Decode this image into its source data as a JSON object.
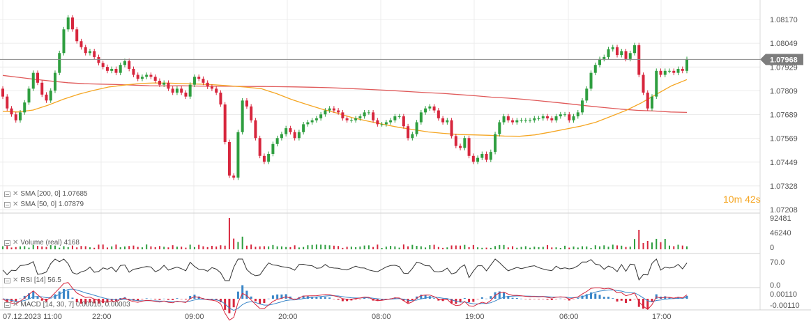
{
  "chart_data": {
    "type": "candlestick",
    "instrument_price_axis": {
      "ticks": [
        "1.08170",
        "1.08049",
        "1.07929",
        "1.07809",
        "1.07689",
        "1.07569",
        "1.07449",
        "1.07328",
        "1.07208"
      ],
      "min": 1.07208,
      "max": 1.0817,
      "current_price": "1.07968"
    },
    "x_axis": {
      "ticks": [
        "07.12.2023  11:00",
        "22:00",
        "09:00",
        "20:00",
        "08:00",
        "19:00",
        "06:00",
        "17:00"
      ]
    },
    "candles_close": [
      1.0778,
      1.0772,
      1.0769,
      1.0766,
      1.077,
      1.0775,
      1.0782,
      1.079,
      1.0785,
      1.0779,
      1.0776,
      1.0781,
      1.079,
      1.08,
      1.0812,
      1.0818,
      1.0812,
      1.0806,
      1.0803,
      1.08,
      1.0801,
      1.0798,
      1.0795,
      1.0793,
      1.0791,
      1.0792,
      1.079,
      1.0794,
      1.0796,
      1.0792,
      1.0789,
      1.0787,
      1.0788,
      1.0789,
      1.0788,
      1.0786,
      1.0784,
      1.0785,
      1.0782,
      1.078,
      1.0782,
      1.078,
      1.0778,
      1.0784,
      1.0788,
      1.0787,
      1.0785,
      1.0783,
      1.0782,
      1.078,
      1.0774,
      1.0755,
      1.0738,
      1.0737,
      1.076,
      1.0776,
      1.0773,
      1.0766,
      1.0757,
      1.0748,
      1.0745,
      1.0749,
      1.0754,
      1.0757,
      1.0759,
      1.0762,
      1.076,
      1.0757,
      1.076,
      1.0764,
      1.0765,
      1.0766,
      1.0767,
      1.0769,
      1.0771,
      1.0772,
      1.0771,
      1.077,
      1.0767,
      1.0766,
      1.0766,
      1.0767,
      1.0768,
      1.077,
      1.077,
      1.0766,
      1.0764,
      1.0764,
      1.0765,
      1.0766,
      1.0768,
      1.0768,
      1.0763,
      1.0757,
      1.0759,
      1.0765,
      1.077,
      1.0772,
      1.0773,
      1.0771,
      1.0767,
      1.0765,
      1.0766,
      1.0758,
      1.0753,
      1.0752,
      1.0757,
      1.0748,
      1.0745,
      1.0747,
      1.0749,
      1.0746,
      1.075,
      1.0759,
      1.0765,
      1.0768,
      1.0766,
      1.0765,
      1.0766,
      1.0766,
      1.0766,
      1.0766,
      1.0767,
      1.0767,
      1.0768,
      1.0767,
      1.0766,
      1.0768,
      1.0769,
      1.0769,
      1.0766,
      1.0768,
      1.077,
      1.0776,
      1.0782,
      1.079,
      1.0794,
      1.0797,
      1.0798,
      1.0802,
      1.0803,
      1.0799,
      1.0801,
      1.0797,
      1.08,
      1.0804,
      1.0789,
      1.078,
      1.0772,
      1.0778,
      1.0791,
      1.0789,
      1.0791,
      1.0791,
      1.079,
      1.0792,
      1.0791,
      1.0797
    ],
    "sma200": [
      1.07887,
      1.07877,
      1.07867,
      1.07858,
      1.0785,
      1.07845,
      1.07843,
      1.07841,
      1.07838,
      1.07835,
      1.07834,
      1.07835,
      1.07833,
      1.07832,
      1.07832,
      1.07831,
      1.07831,
      1.0783,
      1.07829,
      1.07827,
      1.07825,
      1.07822,
      1.07818,
      1.07814,
      1.0781,
      1.07805,
      1.078,
      1.07796,
      1.0779,
      1.07784,
      1.07777,
      1.07772,
      1.07766,
      1.07758,
      1.0775,
      1.07741,
      1.07732,
      1.07724,
      1.07716,
      1.0771,
      1.07707,
      1.07702,
      1.077
    ],
    "sma50": [
      1.07705,
      1.07702,
      1.07712,
      1.07737,
      1.07767,
      1.07792,
      1.07812,
      1.07829,
      1.07838,
      1.07846,
      1.07849,
      1.07848,
      1.07845,
      1.07843,
      1.07839,
      1.07834,
      1.07828,
      1.0782,
      1.07795,
      1.07765,
      1.0774,
      1.07716,
      1.07696,
      1.07673,
      1.07656,
      1.0764,
      1.07625,
      1.07613,
      1.07601,
      1.07594,
      1.07588,
      1.07586,
      1.07584,
      1.0758,
      1.07579,
      1.07586,
      1.076,
      1.07615,
      1.0763,
      1.0765,
      1.0768,
      1.0771,
      1.07748,
      1.07792,
      1.07835,
      1.07866
    ],
    "legend": {
      "sma200": "SMA  [200,  0]  1.07685",
      "sma50": "SMA  [50,  0]  1.07879"
    },
    "volume": {
      "label": "Volume  (real)  4168",
      "ticks": [
        "92481",
        "46240",
        "0"
      ]
    },
    "rsi": {
      "label": "RSI  [14]  56.5",
      "ticks": [
        "70.0",
        "0.0"
      ]
    },
    "macd": {
      "label": "MACD  [14,  30,  7]  0.00010,  0.00003",
      "ticks": [
        "0.00110",
        "-0.00110"
      ]
    },
    "colors": {
      "up": "#2e9e3f",
      "down": "#d7263d",
      "sma200": "#e05a5a",
      "sma50": "#f5a623",
      "rsi": "#333333",
      "macd_line": "#d7263d",
      "macd_signal": "#3a86c8",
      "grid": "#ececec",
      "price_line": "#888888",
      "price_box": "#7d7d7d"
    }
  },
  "timer": {
    "minutes": "10",
    "m_unit": "m",
    "seconds": "42",
    "s_unit": "s"
  }
}
